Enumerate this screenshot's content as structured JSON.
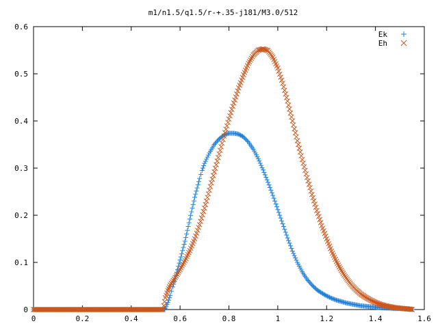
{
  "chart_data": {
    "type": "scatter",
    "title": "m1/n1.5/q1.5/r-+.35-j181/M3.0/512",
    "xlabel": "",
    "ylabel": "",
    "xlim": [
      0,
      1.6
    ],
    "ylim": [
      0,
      0.6
    ],
    "xticks": [
      "0",
      "0.2",
      "0.4",
      "0.6",
      "0.8",
      "1",
      "1.2",
      "1.4",
      "1.6"
    ],
    "yticks": [
      "0",
      "0.1",
      "0.2",
      "0.3",
      "0.4",
      "0.5",
      "0.6"
    ],
    "grid": false,
    "legend_position": "top-right",
    "series": [
      {
        "name": "Ek",
        "marker": "plus",
        "color": "#1f7fd6",
        "points": [
          [
            0.0,
            0.0
          ],
          [
            0.53,
            0.0
          ],
          [
            0.54,
            0.003
          ],
          [
            0.55,
            0.015
          ],
          [
            0.56,
            0.03
          ],
          [
            0.57,
            0.048
          ],
          [
            0.58,
            0.065
          ],
          [
            0.59,
            0.085
          ],
          [
            0.6,
            0.105
          ],
          [
            0.61,
            0.125
          ],
          [
            0.62,
            0.145
          ],
          [
            0.63,
            0.168
          ],
          [
            0.64,
            0.192
          ],
          [
            0.65,
            0.215
          ],
          [
            0.66,
            0.238
          ],
          [
            0.67,
            0.258
          ],
          [
            0.68,
            0.278
          ],
          [
            0.69,
            0.295
          ],
          [
            0.7,
            0.31
          ],
          [
            0.72,
            0.332
          ],
          [
            0.74,
            0.35
          ],
          [
            0.76,
            0.362
          ],
          [
            0.78,
            0.37
          ],
          [
            0.8,
            0.374
          ],
          [
            0.82,
            0.374
          ],
          [
            0.84,
            0.372
          ],
          [
            0.86,
            0.366
          ],
          [
            0.88,
            0.355
          ],
          [
            0.9,
            0.34
          ],
          [
            0.92,
            0.32
          ],
          [
            0.94,
            0.296
          ],
          [
            0.96,
            0.27
          ],
          [
            0.98,
            0.242
          ],
          [
            1.0,
            0.212
          ],
          [
            1.02,
            0.182
          ],
          [
            1.04,
            0.152
          ],
          [
            1.06,
            0.124
          ],
          [
            1.08,
            0.1
          ],
          [
            1.1,
            0.08
          ],
          [
            1.12,
            0.064
          ],
          [
            1.14,
            0.052
          ],
          [
            1.16,
            0.042
          ],
          [
            1.18,
            0.035
          ],
          [
            1.2,
            0.029
          ],
          [
            1.22,
            0.024
          ],
          [
            1.24,
            0.02
          ],
          [
            1.26,
            0.017
          ],
          [
            1.28,
            0.014
          ],
          [
            1.3,
            0.012
          ],
          [
            1.32,
            0.01
          ],
          [
            1.34,
            0.008
          ],
          [
            1.36,
            0.007
          ],
          [
            1.38,
            0.006
          ],
          [
            1.4,
            0.005
          ],
          [
            1.42,
            0.004
          ],
          [
            1.44,
            0.003
          ],
          [
            1.46,
            0.003
          ],
          [
            1.48,
            0.002
          ],
          [
            1.5,
            0.002
          ],
          [
            1.52,
            0.001
          ],
          [
            1.54,
            0.001
          ],
          [
            1.55,
            0.0
          ]
        ]
      },
      {
        "name": "Eh",
        "marker": "cross",
        "color": "#c8581f",
        "points": [
          [
            0.0,
            0.0
          ],
          [
            0.53,
            0.0
          ],
          [
            0.54,
            0.025
          ],
          [
            0.55,
            0.04
          ],
          [
            0.56,
            0.052
          ],
          [
            0.58,
            0.068
          ],
          [
            0.6,
            0.085
          ],
          [
            0.62,
            0.104
          ],
          [
            0.64,
            0.125
          ],
          [
            0.66,
            0.15
          ],
          [
            0.68,
            0.18
          ],
          [
            0.7,
            0.215
          ],
          [
            0.72,
            0.253
          ],
          [
            0.74,
            0.292
          ],
          [
            0.76,
            0.33
          ],
          [
            0.78,
            0.368
          ],
          [
            0.8,
            0.404
          ],
          [
            0.82,
            0.438
          ],
          [
            0.84,
            0.47
          ],
          [
            0.86,
            0.498
          ],
          [
            0.88,
            0.522
          ],
          [
            0.9,
            0.54
          ],
          [
            0.92,
            0.55
          ],
          [
            0.94,
            0.553
          ],
          [
            0.96,
            0.549
          ],
          [
            0.98,
            0.535
          ],
          [
            1.0,
            0.512
          ],
          [
            1.02,
            0.48
          ],
          [
            1.04,
            0.442
          ],
          [
            1.06,
            0.4
          ],
          [
            1.08,
            0.358
          ],
          [
            1.1,
            0.318
          ],
          [
            1.12,
            0.28
          ],
          [
            1.14,
            0.244
          ],
          [
            1.16,
            0.21
          ],
          [
            1.18,
            0.178
          ],
          [
            1.2,
            0.15
          ],
          [
            1.22,
            0.124
          ],
          [
            1.24,
            0.102
          ],
          [
            1.26,
            0.083
          ],
          [
            1.28,
            0.067
          ],
          [
            1.3,
            0.053
          ],
          [
            1.32,
            0.042
          ],
          [
            1.34,
            0.033
          ],
          [
            1.36,
            0.026
          ],
          [
            1.38,
            0.02
          ],
          [
            1.4,
            0.015
          ],
          [
            1.42,
            0.011
          ],
          [
            1.44,
            0.008
          ],
          [
            1.46,
            0.006
          ],
          [
            1.48,
            0.004
          ],
          [
            1.5,
            0.003
          ],
          [
            1.52,
            0.002
          ],
          [
            1.54,
            0.001
          ],
          [
            1.55,
            0.0
          ]
        ]
      }
    ]
  }
}
